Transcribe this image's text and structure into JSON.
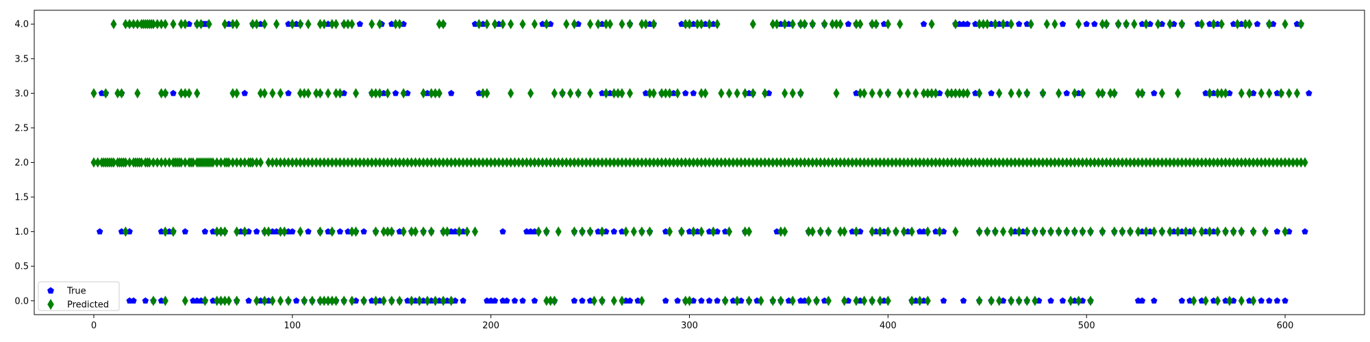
{
  "chart_data": {
    "type": "scatter",
    "xlim": [
      -30,
      640
    ],
    "ylim": [
      -0.2,
      4.2
    ],
    "xticks": [
      0,
      100,
      200,
      300,
      400,
      500,
      600
    ],
    "xtick_labels": [
      "0",
      "100",
      "200",
      "300",
      "400",
      "500",
      "600"
    ],
    "yticks": [
      0.0,
      0.5,
      1.0,
      1.5,
      2.0,
      2.5,
      3.0,
      3.5,
      4.0
    ],
    "ytick_labels": [
      "0.0",
      "0.5",
      "1.0",
      "1.5",
      "2.0",
      "2.5",
      "3.0",
      "3.5",
      "4.0"
    ],
    "grid": false,
    "legend_position": "bottom-left",
    "series": [
      {
        "name": "True",
        "marker": "pentagon",
        "color": "#0000ff",
        "points": {
          "4": [
            18,
            22,
            26,
            30,
            48,
            52,
            55,
            56,
            57,
            68,
            80,
            84,
            98,
            102,
            104,
            118,
            126,
            134,
            145,
            150,
            156,
            176,
            192,
            196,
            204,
            226,
            228,
            230,
            244,
            256,
            270,
            280,
            282,
            296,
            298,
            300,
            302,
            308,
            312,
            346,
            350,
            356,
            358,
            362,
            368,
            380,
            384,
            392,
            394,
            398,
            418,
            438,
            434,
            436,
            440,
            444,
            448,
            452,
            456,
            460,
            466,
            470,
            488,
            500,
            504,
            510,
            516,
            520,
            528,
            532,
            538,
            544,
            548,
            556,
            562,
            566,
            574,
            578,
            586,
            592,
            594,
            606,
            608
          ],
          "3": [
            4,
            6,
            14,
            36,
            40,
            46,
            76,
            98,
            114,
            126,
            140,
            146,
            152,
            158,
            168,
            172,
            180,
            194,
            236,
            244,
            256,
            260,
            264,
            278,
            286,
            292,
            298,
            302,
            330,
            332,
            340,
            356,
            384,
            400,
            420,
            426,
            432,
            438,
            444,
            452,
            470,
            478,
            490,
            496,
            508,
            514,
            528,
            534,
            560,
            564,
            572,
            584,
            596,
            598,
            612
          ],
          "2": [],
          "1": [
            3,
            14,
            18,
            34,
            38,
            40,
            46,
            56,
            60,
            62,
            64,
            66,
            74,
            76,
            78,
            82,
            86,
            90,
            92,
            94,
            98,
            100,
            108,
            114,
            118,
            120,
            124,
            128,
            132,
            136,
            142,
            148,
            150,
            154,
            160,
            166,
            170,
            176,
            180,
            182,
            184,
            186,
            206,
            218,
            220,
            222,
            228,
            242,
            246,
            250,
            254,
            258,
            262,
            266,
            276,
            280,
            288,
            296,
            300,
            304,
            310,
            314,
            318,
            328,
            344,
            360,
            366,
            370,
            382,
            386,
            394,
            398,
            404,
            410,
            416,
            418,
            424,
            428,
            446,
            450,
            454,
            464,
            468,
            470,
            474,
            478,
            482,
            486,
            490,
            494,
            498,
            502,
            508,
            514,
            518,
            522,
            528,
            532,
            538,
            544,
            548,
            552,
            560,
            564,
            570,
            574,
            578,
            584,
            590,
            596,
            602,
            610
          ],
          "0": [
            18,
            20,
            26,
            30,
            34,
            50,
            52,
            54,
            56,
            60,
            64,
            72,
            78,
            84,
            88,
            98,
            102,
            106,
            110,
            114,
            118,
            122,
            126,
            132,
            136,
            140,
            144,
            150,
            154,
            158,
            162,
            166,
            170,
            174,
            176,
            178,
            180,
            182,
            186,
            198,
            200,
            202,
            206,
            208,
            212,
            216,
            222,
            232,
            242,
            246,
            250,
            256,
            268,
            270,
            274,
            288,
            294,
            298,
            302,
            306,
            310,
            314,
            318,
            322,
            326,
            330,
            334,
            342,
            346,
            350,
            356,
            358,
            364,
            368,
            380,
            386,
            392,
            398,
            412,
            414,
            418,
            428,
            438,
            446,
            452,
            458,
            462,
            466,
            470,
            476,
            482,
            488,
            494,
            498,
            502,
            526,
            528,
            534,
            548,
            552,
            558,
            564,
            570,
            574,
            582,
            588,
            592,
            596,
            600
          ]
        }
      },
      {
        "name": "Predicted",
        "marker": "thin_diamond",
        "color": "#008000",
        "points": {
          "4": [
            10,
            16,
            18,
            20,
            22,
            24,
            25,
            26,
            27,
            28,
            29,
            30,
            32,
            34,
            36,
            40,
            44,
            46,
            52,
            54,
            58,
            66,
            70,
            72,
            80,
            82,
            86,
            92,
            100,
            104,
            108,
            114,
            116,
            120,
            122,
            126,
            128,
            130,
            140,
            144,
            152,
            154,
            174,
            176,
            194,
            198,
            202,
            206,
            210,
            216,
            222,
            228,
            238,
            242,
            250,
            254,
            258,
            260,
            266,
            270,
            276,
            278,
            282,
            298,
            300,
            304,
            306,
            310,
            314,
            332,
            342,
            344,
            348,
            352,
            356,
            358,
            362,
            368,
            372,
            374,
            376,
            384,
            386,
            392,
            394,
            400,
            406,
            422,
            434,
            446,
            448,
            450,
            454,
            458,
            462,
            472,
            480,
            484,
            496,
            508,
            510,
            516,
            520,
            524,
            530,
            536,
            542,
            548,
            558,
            564,
            568,
            576,
            580,
            582,
            592,
            600,
            608
          ],
          "3": [
            0,
            6,
            12,
            14,
            22,
            34,
            36,
            44,
            46,
            48,
            52,
            70,
            72,
            84,
            86,
            90,
            94,
            104,
            106,
            108,
            112,
            114,
            118,
            122,
            124,
            132,
            140,
            142,
            144,
            148,
            156,
            166,
            170,
            172,
            174,
            196,
            198,
            210,
            220,
            232,
            236,
            240,
            244,
            250,
            258,
            262,
            264,
            266,
            270,
            280,
            282,
            286,
            288,
            290,
            294,
            306,
            308,
            316,
            320,
            324,
            328,
            332,
            338,
            348,
            352,
            356,
            374,
            386,
            388,
            392,
            396,
            400,
            406,
            410,
            414,
            418,
            420,
            422,
            424,
            430,
            432,
            434,
            436,
            438,
            440,
            446,
            456,
            462,
            466,
            470,
            478,
            486,
            494,
            498,
            506,
            508,
            512,
            514,
            526,
            528,
            538,
            546,
            562,
            566,
            568,
            570,
            578,
            582,
            588,
            592,
            598,
            602,
            606
          ],
          "2": [
            0,
            2,
            4,
            5,
            6,
            7,
            8,
            9,
            10,
            12,
            13,
            14,
            15,
            16,
            18,
            20,
            21,
            22,
            23,
            24,
            26,
            27,
            28,
            30,
            32,
            34,
            36,
            38,
            40,
            41,
            42,
            43,
            44,
            46,
            48,
            49,
            50,
            52,
            53,
            54,
            55,
            56,
            57,
            58,
            59,
            60,
            62,
            64,
            66,
            67,
            68,
            70,
            72,
            74,
            76,
            78,
            79,
            80,
            82,
            84,
            88,
            90,
            92,
            94,
            96,
            98,
            100,
            102,
            104,
            106,
            108,
            110,
            112,
            114,
            116,
            118,
            120,
            122,
            124,
            126,
            128,
            130,
            132,
            134,
            136,
            138,
            140,
            142,
            144,
            146,
            148,
            150,
            152,
            154,
            156,
            158,
            160,
            162,
            164,
            166,
            168,
            170,
            172,
            174,
            176,
            178,
            180,
            182,
            184,
            186,
            188,
            190,
            192,
            194,
            196,
            198,
            200,
            202,
            204,
            206,
            208,
            210,
            212,
            214,
            216,
            218,
            220,
            222,
            224,
            226,
            228,
            230,
            232,
            234,
            236,
            238,
            240,
            242,
            244,
            246,
            248,
            250,
            252,
            254,
            256,
            258,
            260,
            262,
            264,
            266,
            268,
            270,
            272,
            274,
            276,
            278,
            280,
            282,
            284,
            286,
            288,
            290,
            292,
            294,
            296,
            298,
            300,
            302,
            304,
            306,
            308,
            310,
            312,
            314,
            316,
            318,
            320,
            322,
            324,
            326,
            328,
            330,
            332,
            334,
            336,
            338,
            340,
            342,
            344,
            346,
            348,
            350,
            352,
            354,
            356,
            358,
            360,
            362,
            364,
            366,
            368,
            370,
            372,
            374,
            376,
            378,
            380,
            382,
            384,
            386,
            388,
            390,
            392,
            394,
            396,
            398,
            400,
            402,
            404,
            406,
            408,
            410,
            412,
            414,
            416,
            418,
            420,
            422,
            424,
            426,
            428,
            430,
            432,
            434,
            436,
            438,
            440,
            442,
            444,
            446,
            448,
            450,
            452,
            454,
            456,
            458,
            460,
            462,
            464,
            466,
            468,
            470,
            472,
            474,
            476,
            478,
            480,
            482,
            484,
            486,
            488,
            490,
            492,
            494,
            496,
            498,
            500,
            502,
            504,
            506,
            508,
            510,
            512,
            514,
            516,
            518,
            520,
            522,
            524,
            526,
            528,
            530,
            532,
            534,
            536,
            538,
            540,
            542,
            544,
            546,
            548,
            550,
            552,
            554,
            556,
            558,
            560,
            562,
            564,
            566,
            568,
            570,
            572,
            574,
            576,
            578,
            580,
            582,
            584,
            586,
            588,
            590,
            592,
            594,
            596,
            598,
            600,
            602,
            604,
            606,
            608,
            610
          ],
          "1": [
            16,
            36,
            40,
            62,
            64,
            66,
            72,
            76,
            86,
            88,
            94,
            96,
            104,
            114,
            120,
            130,
            132,
            142,
            146,
            148,
            150,
            156,
            160,
            162,
            166,
            170,
            176,
            178,
            184,
            188,
            192,
            224,
            228,
            234,
            242,
            246,
            250,
            256,
            268,
            272,
            276,
            280,
            290,
            296,
            302,
            306,
            312,
            320,
            328,
            330,
            346,
            348,
            360,
            362,
            366,
            370,
            376,
            378,
            384,
            392,
            396,
            400,
            404,
            408,
            412,
            420,
            426,
            434,
            446,
            450,
            454,
            458,
            462,
            466,
            470,
            474,
            478,
            482,
            486,
            490,
            494,
            498,
            502,
            508,
            514,
            518,
            522,
            526,
            530,
            534,
            538,
            542,
            546,
            550,
            554,
            558,
            562,
            566,
            570,
            574,
            578,
            584,
            590,
            600
          ],
          "0": [
            30,
            36,
            46,
            56,
            62,
            64,
            66,
            68,
            72,
            82,
            86,
            90,
            94,
            98,
            106,
            110,
            114,
            116,
            118,
            120,
            122,
            126,
            130,
            136,
            142,
            146,
            150,
            154,
            160,
            164,
            168,
            172,
            176,
            180,
            228,
            230,
            232,
            252,
            256,
            262,
            266,
            276,
            298,
            300,
            318,
            324,
            330,
            336,
            342,
            346,
            352,
            360,
            364,
            370,
            378,
            384,
            388,
            392,
            396,
            400,
            412,
            416,
            420,
            446,
            452,
            456,
            462,
            466,
            470,
            474,
            492,
            496,
            502,
            554,
            560,
            566,
            572,
            578,
            584
          ]
        }
      }
    ]
  }
}
